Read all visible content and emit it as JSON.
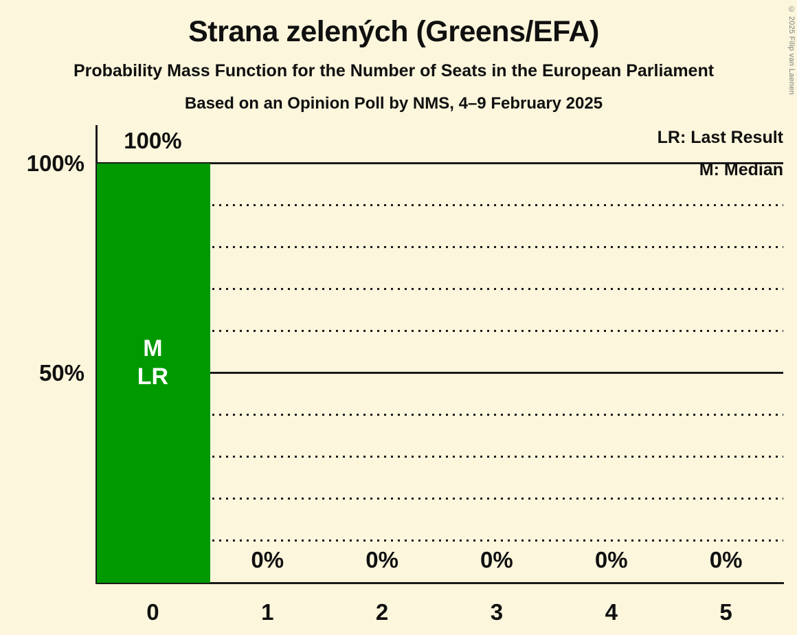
{
  "header": {
    "title": "Strana zelených (Greens/EFA)",
    "subtitle": "Probability Mass Function for the Number of Seats in the European Parliament",
    "poll_line": "Based on an Opinion Poll by NMS, 4–9 February 2025"
  },
  "copyright": "© 2025 Filip van Laenen",
  "legend": {
    "last_result": "LR: Last Result",
    "median": "M: Median"
  },
  "colors": {
    "background": "#FBF6DC",
    "bar": "#009900",
    "text": "#101010",
    "grid": "#1A1A1A",
    "bar_label_text": "#FFFFFF",
    "copyright_text": "#808080"
  },
  "chart_data": {
    "type": "bar",
    "title": "Strana zelených (Greens/EFA)",
    "categories": [
      "0",
      "1",
      "2",
      "3",
      "4",
      "5"
    ],
    "values": [
      100,
      0,
      0,
      0,
      0,
      0
    ],
    "bar_value_labels": [
      "100%",
      "0%",
      "0%",
      "0%",
      "0%",
      "0%"
    ],
    "ylim": [
      0,
      100
    ],
    "yticks": [
      {
        "value": 100,
        "label": "100%"
      },
      {
        "value": 50,
        "label": "50%"
      }
    ],
    "gridlines": {
      "dotted_percents": [
        10,
        20,
        30,
        40,
        60,
        70,
        80,
        90
      ],
      "solid_percents": [
        50,
        100
      ]
    },
    "median_category": "0",
    "last_result_category": "0",
    "bar_annotations": [
      {
        "category": "0",
        "lines": [
          "M",
          "LR"
        ]
      }
    ],
    "legend_position": "top-right",
    "grid": true
  }
}
